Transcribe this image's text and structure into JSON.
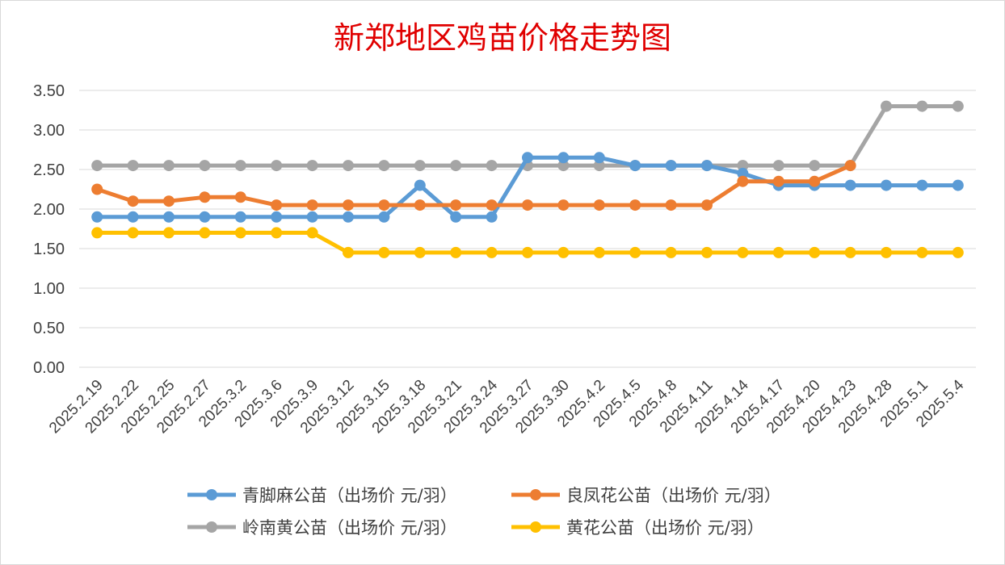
{
  "chart_data": {
    "type": "line",
    "title": "新郑地区鸡苗价格走势图",
    "xlabel": "",
    "ylabel": "",
    "ylim": [
      0,
      3.5
    ],
    "yticks": [
      "0.00",
      "0.50",
      "1.00",
      "1.50",
      "2.00",
      "2.50",
      "3.00",
      "3.50"
    ],
    "grid": "horizontal",
    "legend_position": "bottom",
    "categories": [
      "2025.2.19",
      "2025.2.22",
      "2025.2.25",
      "2025.2.27",
      "2025.3.2",
      "2025.3.6",
      "2025.3.9",
      "2025.3.12",
      "2025.3.15",
      "2025.3.18",
      "2025.3.21",
      "2025.3.24",
      "2025.3.27",
      "2025.3.30",
      "2025.4.2",
      "2025.4.5",
      "2025.4.8",
      "2025.4.11",
      "2025.4.14",
      "2025.4.17",
      "2025.4.20",
      "2025.4.23",
      "2025.4.28",
      "2025.5.1",
      "2025.5.4"
    ],
    "series": [
      {
        "name": "青脚麻公苗（出场价 元/羽）",
        "color": "#5b9bd5",
        "values": [
          1.9,
          1.9,
          1.9,
          1.9,
          1.9,
          1.9,
          1.9,
          1.9,
          1.9,
          2.3,
          1.9,
          1.9,
          2.65,
          2.65,
          2.65,
          2.55,
          2.55,
          2.55,
          2.45,
          2.3,
          2.3,
          2.3,
          2.3,
          2.3,
          2.3
        ]
      },
      {
        "name": "良凤花公苗（出场价 元/羽）",
        "color": "#ed7d31",
        "values": [
          2.25,
          2.1,
          2.1,
          2.15,
          2.15,
          2.05,
          2.05,
          2.05,
          2.05,
          2.05,
          2.05,
          2.05,
          2.05,
          2.05,
          2.05,
          2.05,
          2.05,
          2.05,
          2.35,
          2.35,
          2.35,
          2.55,
          null,
          null,
          null
        ]
      },
      {
        "name": "岭南黄公苗（出场价 元/羽）",
        "color": "#a5a5a5",
        "values": [
          2.55,
          2.55,
          2.55,
          2.55,
          2.55,
          2.55,
          2.55,
          2.55,
          2.55,
          2.55,
          2.55,
          2.55,
          2.55,
          2.55,
          2.55,
          2.55,
          2.55,
          2.55,
          2.55,
          2.55,
          2.55,
          2.55,
          3.3,
          3.3,
          3.3
        ]
      },
      {
        "name": "黄花公苗（出场价 元/羽）",
        "color": "#ffc000",
        "values": [
          1.7,
          1.7,
          1.7,
          1.7,
          1.7,
          1.7,
          1.7,
          1.45,
          1.45,
          1.45,
          1.45,
          1.45,
          1.45,
          1.45,
          1.45,
          1.45,
          1.45,
          1.45,
          1.45,
          1.45,
          1.45,
          1.45,
          1.45,
          1.45,
          1.45
        ]
      }
    ]
  },
  "colors": {
    "title": "#e00000",
    "grid": "#d9d9d9",
    "tick_text": "#404040"
  }
}
